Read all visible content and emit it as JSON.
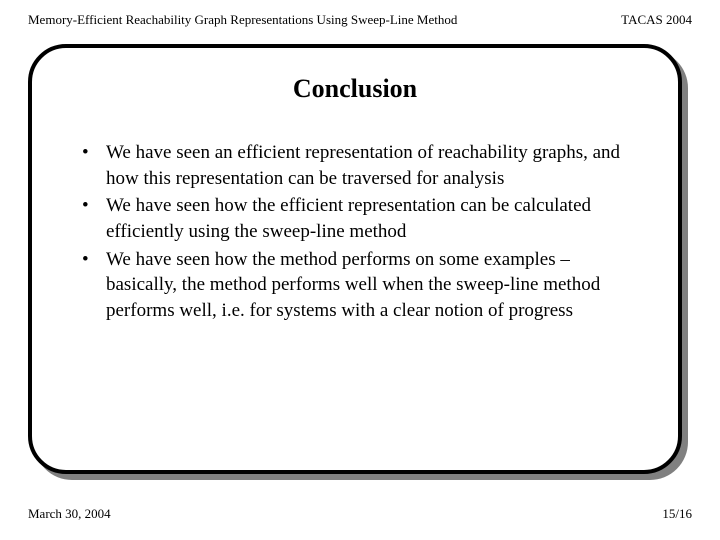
{
  "header": {
    "left": "Memory-Efficient Reachability Graph Representations Using Sweep-Line Method",
    "right": "TACAS 2004"
  },
  "slide": {
    "title": "Conclusion",
    "bullets": [
      "We have seen an efficient representation of reachability graphs, and how this representation can be traversed for analysis",
      "We have seen how the efficient representation can be calculated efficiently using the sweep-line method",
      "We have seen how the method performs on some examples – basically, the method performs well when the sweep-line method performs well, i.e. for systems with a clear notion of progress"
    ]
  },
  "footer": {
    "date": "March 30, 2004",
    "page": "15/16"
  },
  "colors": {
    "background": "#ffffff",
    "text": "#000000",
    "border": "#000000",
    "shadow": "#808080"
  },
  "typography": {
    "header_fontsize": 13,
    "title_fontsize": 26,
    "body_fontsize": 19,
    "font_family": "Georgia, Times New Roman, serif"
  }
}
